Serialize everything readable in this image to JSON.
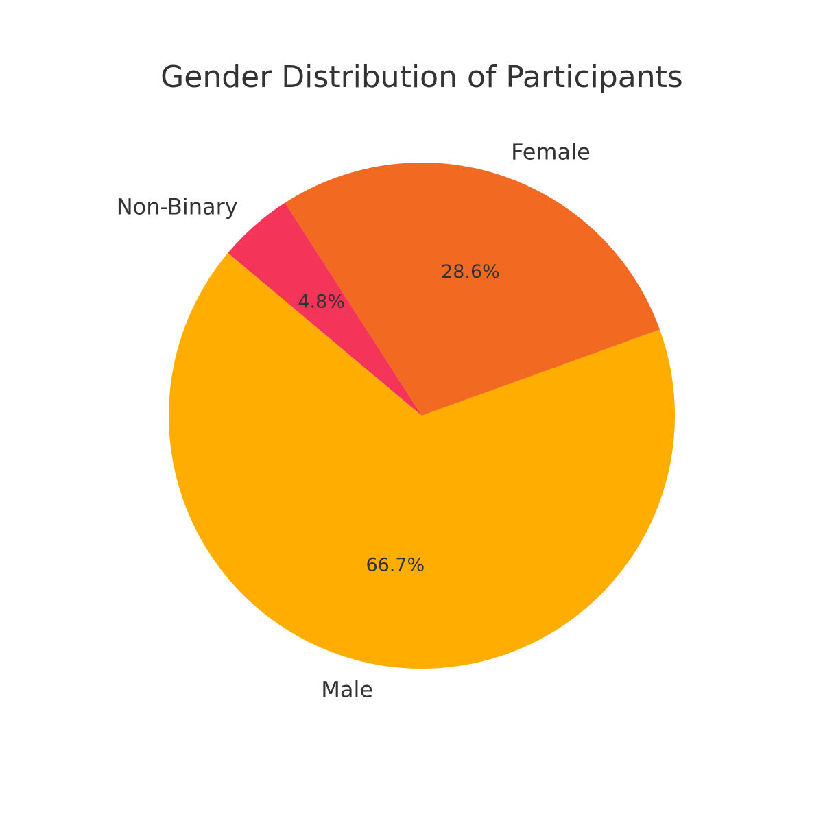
{
  "chart_data": {
    "type": "pie",
    "title": "Gender Distribution of Participants",
    "slices": [
      {
        "label": "Male",
        "value": 66.7,
        "pct_label": "66.7%",
        "color": "#FFAE00"
      },
      {
        "label": "Female",
        "value": 28.6,
        "pct_label": "28.6%",
        "color": "#F26A21"
      },
      {
        "label": "Non-Binary",
        "value": 4.8,
        "pct_label": "4.8%",
        "color": "#F5345A"
      }
    ],
    "start_angle_deg": 140,
    "direction": "counterclockwise"
  }
}
